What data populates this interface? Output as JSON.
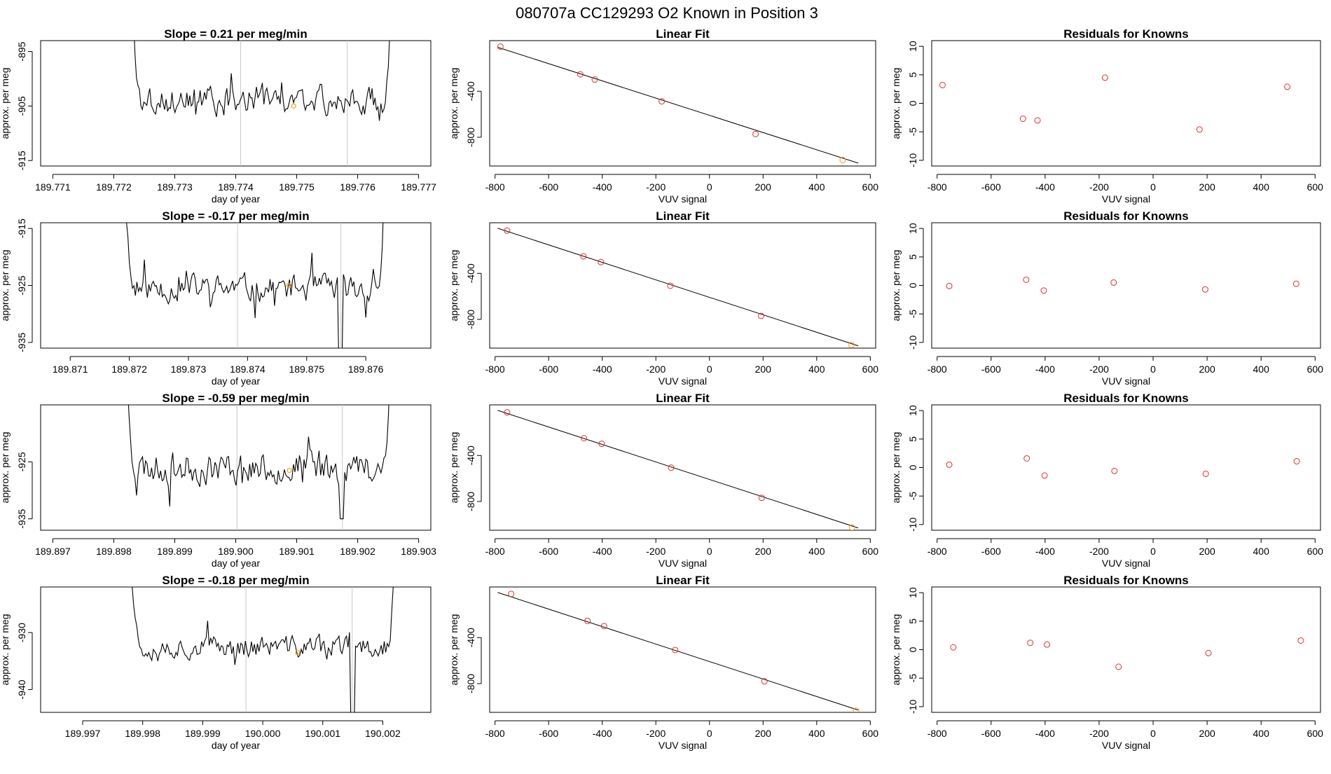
{
  "suptitle": "080707a      CC129293    O2 Known in Position  3",
  "colors": {
    "line": "#000000",
    "vline": "#c8c8c8",
    "highlight": "#f0a020",
    "residual": "#e03030",
    "fit_point": "#e03030",
    "frame": "#000000"
  },
  "chart_data": [
    {
      "type": "line",
      "row": 0,
      "col": 0,
      "title": "Slope =  0.21  per meg/min",
      "xlabel": "day of year",
      "ylabel": "approx. per meg",
      "xlim": [
        189.7708,
        189.7772
      ],
      "ylim": [
        -916,
        -893
      ],
      "xticks": [
        "189.771",
        "189.772",
        "189.773",
        "189.774",
        "189.775",
        "189.776",
        "189.777"
      ],
      "xtick_values": [
        189.771,
        189.772,
        189.773,
        189.774,
        189.775,
        189.776,
        189.777
      ],
      "yticks": [
        "-895",
        "-905",
        "-915"
      ],
      "ytick_values": [
        -895,
        -905,
        -915
      ],
      "vlines": [
        189.77408,
        189.77583
      ],
      "series": [
        {
          "x_start": 189.77225,
          "x_end": 189.7766,
          "n": 180,
          "base": -904,
          "noise": 2.6,
          "spike_start": -870,
          "spike_end": -870,
          "seed": 3
        }
      ],
      "highlight": {
        "x": 189.77495,
        "y": -905.0
      }
    },
    {
      "type": "scatter",
      "row": 0,
      "col": 1,
      "title": "Linear Fit",
      "xlabel": "VUV signal",
      "ylabel": "approx. per meg",
      "xlim": [
        -820,
        620
      ],
      "ylim": [
        -1050,
        40
      ],
      "xticks": [
        "-800",
        "-600",
        "-400",
        "-200",
        "0",
        "200",
        "400",
        "600"
      ],
      "xtick_values": [
        -800,
        -600,
        -400,
        -200,
        0,
        200,
        400,
        600
      ],
      "yticks": [
        "-400",
        "-800"
      ],
      "ytick_values": [
        -400,
        -800
      ],
      "fit_line": {
        "x": [
          -790,
          555
        ],
        "y": [
          -18,
          -1025
        ]
      },
      "points": {
        "x": [
          -780,
          -482,
          -428,
          -178,
          172,
          497
        ],
        "y": [
          -12,
          -253,
          -298,
          -488,
          -772,
          -998
        ]
      },
      "highlight": {
        "x": 497,
        "y": -998
      }
    },
    {
      "type": "scatter",
      "row": 0,
      "col": 2,
      "title": "Residuals for Knowns",
      "xlabel": "VUV signal",
      "ylabel": "approx. per meg",
      "xlim": [
        -820,
        620
      ],
      "ylim": [
        -11,
        11
      ],
      "xticks": [
        "-800",
        "-600",
        "-400",
        "-200",
        "0",
        "200",
        "400",
        "600"
      ],
      "xtick_values": [
        -800,
        -600,
        -400,
        -200,
        0,
        200,
        400,
        600
      ],
      "yticks": [
        "10",
        "5",
        "0",
        "-5",
        "-10"
      ],
      "ytick_values": [
        10,
        5,
        0,
        -5,
        -10
      ],
      "points": {
        "x": [
          -780,
          -482,
          -428,
          -178,
          172,
          497
        ],
        "y": [
          3.2,
          -2.7,
          -3.0,
          4.5,
          -4.6,
          2.9
        ]
      }
    },
    {
      "type": "line",
      "row": 1,
      "col": 0,
      "title": "Slope =  -0.17  per meg/min",
      "xlabel": "day of year",
      "ylabel": "approx. per meg",
      "xlim": [
        189.8705,
        189.8771
      ],
      "ylim": [
        -936,
        -914
      ],
      "xticks": [
        "189.871",
        "189.872",
        "189.873",
        "189.874",
        "189.875",
        "189.876"
      ],
      "xtick_values": [
        189.871,
        189.872,
        189.873,
        189.874,
        189.875,
        189.876
      ],
      "yticks": [
        "-915",
        "-925",
        "-935"
      ],
      "ytick_values": [
        -915,
        -925,
        -935
      ],
      "vlines": [
        189.87383,
        189.87558
      ],
      "series": [
        {
          "x_start": 189.87185,
          "x_end": 189.87638,
          "n": 180,
          "base": -925.5,
          "noise": 2.2,
          "spike_start": -880,
          "spike_end": -880,
          "dip_x": 189.87558,
          "dip_y": -940,
          "seed": 11
        }
      ],
      "highlight": {
        "x": 189.8747,
        "y": -925.0
      }
    },
    {
      "type": "scatter",
      "row": 1,
      "col": 1,
      "title": "Linear Fit",
      "xlabel": "VUV signal",
      "ylabel": "approx. per meg",
      "xlim": [
        -820,
        620
      ],
      "ylim": [
        -1050,
        40
      ],
      "xticks": [
        "-800",
        "-600",
        "-400",
        "-200",
        "0",
        "200",
        "400",
        "600"
      ],
      "xtick_values": [
        -800,
        -600,
        -400,
        -200,
        0,
        200,
        400,
        600
      ],
      "yticks": [
        "-400",
        "-800"
      ],
      "ytick_values": [
        -400,
        -800
      ],
      "fit_line": {
        "x": [
          -790,
          555
        ],
        "y": [
          -8,
          -1030
        ]
      },
      "points": {
        "x": [
          -755,
          -470,
          -405,
          -146,
          193,
          530
        ],
        "y": [
          -28,
          -252,
          -302,
          -508,
          -770,
          -1022
        ]
      },
      "highlight": {
        "x": 530,
        "y": -1022
      }
    },
    {
      "type": "scatter",
      "row": 1,
      "col": 2,
      "title": "Residuals for Knowns",
      "xlabel": "VUV signal",
      "ylabel": "approx. per meg",
      "xlim": [
        -820,
        620
      ],
      "ylim": [
        -11,
        11
      ],
      "xticks": [
        "-800",
        "-600",
        "-400",
        "-200",
        "0",
        "200",
        "400",
        "600"
      ],
      "xtick_values": [
        -800,
        -600,
        -400,
        -200,
        0,
        200,
        400,
        600
      ],
      "yticks": [
        "10",
        "5",
        "0",
        "-5",
        "-10"
      ],
      "ytick_values": [
        10,
        5,
        0,
        -5,
        -10
      ],
      "points": {
        "x": [
          -755,
          -470,
          -405,
          -146,
          193,
          530
        ],
        "y": [
          -0.1,
          1.0,
          -0.9,
          0.5,
          -0.7,
          0.3
        ]
      }
    },
    {
      "type": "line",
      "row": 2,
      "col": 0,
      "title": "Slope =  -0.59  per meg/min",
      "xlabel": "day of year",
      "ylabel": "approx. per meg",
      "xlim": [
        189.8968,
        189.9032
      ],
      "ylim": [
        -937,
        -915
      ],
      "xticks": [
        "189.897",
        "189.898",
        "189.899",
        "189.900",
        "189.901",
        "189.902",
        "189.903"
      ],
      "xtick_values": [
        189.897,
        189.898,
        189.899,
        189.9,
        189.901,
        189.902,
        189.903
      ],
      "yticks": [
        "-925",
        "-935"
      ],
      "ytick_values": [
        -925,
        -935
      ],
      "vlines": [
        189.90002,
        189.90175
      ],
      "series": [
        {
          "x_start": 189.89815,
          "x_end": 189.90258,
          "n": 180,
          "base": -926,
          "noise": 2.6,
          "spike_start": -890,
          "spike_end": -890,
          "dip_x": 189.90175,
          "dip_y": -935,
          "seed": 23
        }
      ],
      "highlight": {
        "x": 189.90088,
        "y": -926.5
      }
    },
    {
      "type": "scatter",
      "row": 2,
      "col": 1,
      "title": "Linear Fit",
      "xlabel": "VUV signal",
      "ylabel": "approx. per meg",
      "xlim": [
        -820,
        620
      ],
      "ylim": [
        -1050,
        40
      ],
      "xticks": [
        "-800",
        "-600",
        "-400",
        "-200",
        "0",
        "200",
        "400",
        "600"
      ],
      "xtick_values": [
        -800,
        -600,
        -400,
        -200,
        0,
        200,
        400,
        600
      ],
      "yticks": [
        "-400",
        "-800"
      ],
      "ytick_values": [
        -400,
        -800
      ],
      "fit_line": {
        "x": [
          -790,
          555
        ],
        "y": [
          -8,
          -1030
        ]
      },
      "points": {
        "x": [
          -755,
          -468,
          -402,
          -143,
          195,
          532
        ],
        "y": [
          -25,
          -250,
          -298,
          -506,
          -768,
          -1026
        ]
      },
      "highlight": {
        "x": 532,
        "y": -1026
      }
    },
    {
      "type": "scatter",
      "row": 2,
      "col": 2,
      "title": "Residuals for Knowns",
      "xlabel": "VUV signal",
      "ylabel": "approx. per meg",
      "xlim": [
        -820,
        620
      ],
      "ylim": [
        -11,
        11
      ],
      "xticks": [
        "-800",
        "-600",
        "-400",
        "-200",
        "0",
        "200",
        "400",
        "600"
      ],
      "xtick_values": [
        -800,
        -600,
        -400,
        -200,
        0,
        200,
        400,
        600
      ],
      "yticks": [
        "10",
        "5",
        "0",
        "-5",
        "-10"
      ],
      "ytick_values": [
        10,
        5,
        0,
        -5,
        -10
      ],
      "points": {
        "x": [
          -755,
          -468,
          -402,
          -143,
          195,
          532
        ],
        "y": [
          0.5,
          1.6,
          -1.4,
          -0.6,
          -1.1,
          1.1
        ]
      }
    },
    {
      "type": "line",
      "row": 3,
      "col": 0,
      "title": "Slope =  -0.18  per meg/min",
      "xlabel": "day of year",
      "ylabel": "approx. per meg",
      "xlim": [
        189.9963,
        190.0028
      ],
      "ylim": [
        -944,
        -922
      ],
      "xticks": [
        "189.997",
        "189.998",
        "189.999",
        "190.000",
        "190.001",
        "190.002"
      ],
      "xtick_values": [
        189.997,
        189.998,
        189.999,
        190.0,
        190.001,
        190.002
      ],
      "yticks": [
        "-930",
        "-940"
      ],
      "ytick_values": [
        -930,
        -940
      ],
      "vlines": [
        189.99972,
        190.00149
      ],
      "series": [
        {
          "x_start": 189.99775,
          "x_end": 190.00225,
          "n": 180,
          "base": -932.5,
          "noise": 1.8,
          "spike_start": -905,
          "spike_end": -905,
          "dip_x": 190.00149,
          "dip_y": -948,
          "seed": 37
        }
      ],
      "highlight": {
        "x": 190.00058,
        "y": -933.5
      }
    },
    {
      "type": "scatter",
      "row": 3,
      "col": 1,
      "title": "Linear Fit",
      "xlabel": "VUV signal",
      "ylabel": "approx. per meg",
      "xlim": [
        -820,
        620
      ],
      "ylim": [
        -1050,
        40
      ],
      "xticks": [
        "-800",
        "-600",
        "-400",
        "-200",
        "0",
        "200",
        "400",
        "600"
      ],
      "xtick_values": [
        -800,
        -600,
        -400,
        -200,
        0,
        200,
        400,
        600
      ],
      "yticks": [
        "-400",
        "-800"
      ],
      "ytick_values": [
        -400,
        -800
      ],
      "fit_line": {
        "x": [
          -790,
          555
        ],
        "y": [
          -8,
          -1030
        ]
      },
      "points": {
        "x": [
          -740,
          -455,
          -393,
          -128,
          205,
          547
        ],
        "y": [
          -20,
          -255,
          -300,
          -508,
          -780,
          -1036
        ]
      },
      "highlight": {
        "x": 547,
        "y": -1036
      }
    },
    {
      "type": "scatter",
      "row": 3,
      "col": 2,
      "title": "Residuals for Knowns",
      "xlabel": "VUV signal",
      "ylabel": "approx. per meg",
      "xlim": [
        -820,
        620
      ],
      "ylim": [
        -11,
        11
      ],
      "xticks": [
        "-800",
        "-600",
        "-400",
        "-200",
        "0",
        "200",
        "400",
        "600"
      ],
      "xtick_values": [
        -800,
        -600,
        -400,
        -200,
        0,
        200,
        400,
        600
      ],
      "yticks": [
        "10",
        "5",
        "0",
        "-5",
        "-10"
      ],
      "ytick_values": [
        10,
        5,
        0,
        -5,
        -10
      ],
      "points": {
        "x": [
          -740,
          -455,
          -393,
          -128,
          205,
          547
        ],
        "y": [
          0.4,
          1.2,
          0.9,
          -3.0,
          -0.6,
          1.6
        ]
      }
    }
  ]
}
